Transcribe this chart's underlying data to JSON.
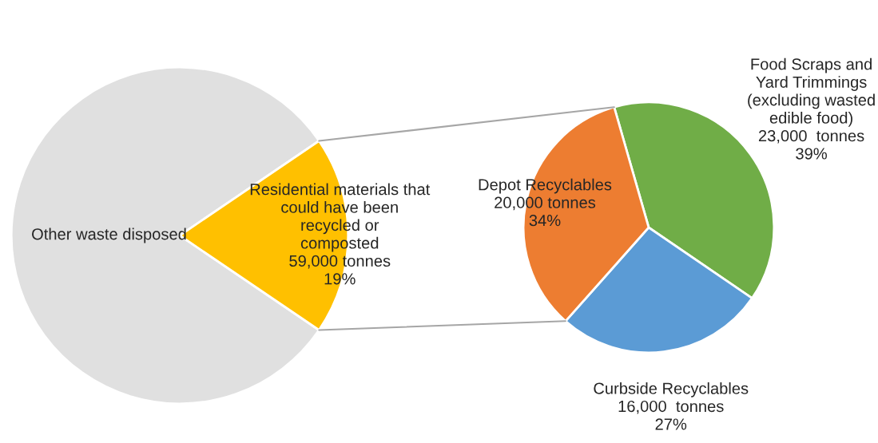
{
  "chart_data": [
    {
      "type": "pie",
      "categories": [
        "Other waste disposed",
        "Residential materials that\ncould have been\nrecycled or\ncomposted"
      ],
      "values": [
        81,
        19
      ],
      "value_labels": [
        null,
        "59,000 tonnes\n19%"
      ],
      "colors": [
        "#e0e0e0",
        "#ffc000"
      ]
    },
    {
      "type": "pie",
      "categories": [
        "Food Scraps and\nYard Trimmings\n(excluding wasted\nedible food)",
        "Curbside Recyclables",
        "Depot Recyclables"
      ],
      "values": [
        39,
        27,
        34
      ],
      "value_labels": [
        "23,000  tonnes\n39%",
        "16,000  tonnes\n27%",
        "20,000 tonnes\n34%"
      ],
      "colors": [
        "#70ad47",
        "#5b9bd5",
        "#ed7d31"
      ]
    }
  ]
}
